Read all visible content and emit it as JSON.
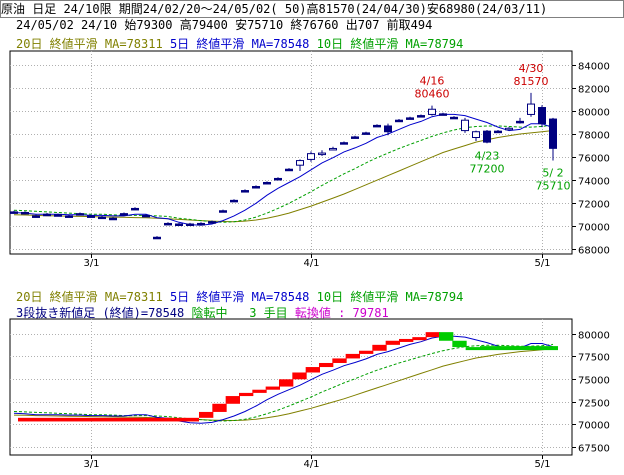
{
  "header": {
    "line1": "原油 日足 24/10限 期間24/02/20～24/05/02( 50)高81570(24/04/30)安68980(24/03/11)",
    "line2": "24/05/02 24/10 始79300 高79400 安75710 終76760 出707 前取494"
  },
  "legend_top": {
    "ma20": "20日 終値平滑 MA=78311",
    "ma5": "5日 終値平滑 MA=78548",
    "ma10": "10日 終値平滑 MA=78794"
  },
  "legend_bottom": {
    "ma20": "20日 終値平滑 MA=78311",
    "ma5": "5日 終値平滑 MA=78548",
    "ma10": "10日 終値平滑 MA=78794",
    "kagi_label": "3段抜き新値足 (終値)=78548",
    "state": "陰転中",
    "count": "3 手目",
    "reversal": "転換値 : 79781"
  },
  "colors": {
    "ma20": "#808000",
    "ma5": "#0000cc",
    "ma10": "#00a000",
    "up": "#ff0000",
    "down": "#00cc00",
    "candle_down": "#000080",
    "annotation_high": "#cc0000",
    "annotation_low": "#00a000"
  },
  "chart_data": [
    {
      "type": "candlestick",
      "x_ticks": [
        "3/1",
        "4/1",
        "5/1"
      ],
      "y_ticks": [
        68000,
        70000,
        72000,
        74000,
        76000,
        78000,
        80000,
        82000,
        84000
      ],
      "ylim": [
        67600,
        85200
      ],
      "annotations": [
        {
          "date": "4/16",
          "value": 80460,
          "date_label": "4/16",
          "value_label": "80460",
          "kind": "high"
        },
        {
          "date": "4/30",
          "value": 81570,
          "date_label": "4/30",
          "value_label": "81570",
          "kind": "high"
        },
        {
          "date": "4/23",
          "value": 77200,
          "date_label": "4/23",
          "value_label": "77200",
          "kind": "low"
        },
        {
          "date": "5/2",
          "value": 75710,
          "date_label": "5/ 2",
          "value_label": "75710",
          "kind": "low"
        }
      ],
      "candles": [
        {
          "date": "2/20",
          "o": 71250,
          "h": 71350,
          "l": 71100,
          "c": 71250
        },
        {
          "date": "2/21",
          "o": 71200,
          "h": 71300,
          "l": 71050,
          "c": 71150
        },
        {
          "date": "2/22",
          "o": 70900,
          "h": 71000,
          "l": 70750,
          "c": 70850
        },
        {
          "date": "2/26",
          "o": 71050,
          "h": 71150,
          "l": 70950,
          "c": 71050
        },
        {
          "date": "2/27",
          "o": 71000,
          "h": 71100,
          "l": 70900,
          "c": 71000
        },
        {
          "date": "2/28",
          "o": 70900,
          "h": 71000,
          "l": 70800,
          "c": 70900
        },
        {
          "date": "2/29",
          "o": 71100,
          "h": 71200,
          "l": 71000,
          "c": 71100
        },
        {
          "date": "3/1",
          "o": 70900,
          "h": 71000,
          "l": 70800,
          "c": 70900
        },
        {
          "date": "3/4",
          "o": 70800,
          "h": 70900,
          "l": 70700,
          "c": 70800
        },
        {
          "date": "3/5",
          "o": 70700,
          "h": 70800,
          "l": 70600,
          "c": 70700
        },
        {
          "date": "3/6",
          "o": 71100,
          "h": 71200,
          "l": 71000,
          "c": 71100
        },
        {
          "date": "3/7",
          "o": 71550,
          "h": 71650,
          "l": 71450,
          "c": 71550
        },
        {
          "date": "3/8",
          "o": 70950,
          "h": 71050,
          "l": 70850,
          "c": 70950
        },
        {
          "date": "3/11",
          "o": 69050,
          "h": 69150,
          "l": 68980,
          "c": 69050
        },
        {
          "date": "3/12",
          "o": 70250,
          "h": 70350,
          "l": 70150,
          "c": 70250
        },
        {
          "date": "3/13",
          "o": 70200,
          "h": 70300,
          "l": 70100,
          "c": 70200
        },
        {
          "date": "3/14",
          "o": 70200,
          "h": 70300,
          "l": 70100,
          "c": 70200
        },
        {
          "date": "3/15",
          "o": 70250,
          "h": 70350,
          "l": 70150,
          "c": 70250
        },
        {
          "date": "3/18",
          "o": 70400,
          "h": 70500,
          "l": 70300,
          "c": 70400
        },
        {
          "date": "3/19",
          "o": 71350,
          "h": 71450,
          "l": 71250,
          "c": 71350
        },
        {
          "date": "3/21",
          "o": 72250,
          "h": 72350,
          "l": 72150,
          "c": 72250
        },
        {
          "date": "3/22",
          "o": 73100,
          "h": 73200,
          "l": 73000,
          "c": 73100
        },
        {
          "date": "3/25",
          "o": 73450,
          "h": 73550,
          "l": 73350,
          "c": 73450
        },
        {
          "date": "3/26",
          "o": 73800,
          "h": 73900,
          "l": 73700,
          "c": 73800
        },
        {
          "date": "3/27",
          "o": 74150,
          "h": 74250,
          "l": 74050,
          "c": 74150
        },
        {
          "date": "3/28",
          "o": 74950,
          "h": 75050,
          "l": 74850,
          "c": 74950
        },
        {
          "date": "3/29",
          "o": 75300,
          "h": 75800,
          "l": 74800,
          "c": 75700
        },
        {
          "date": "4/1",
          "o": 75800,
          "h": 76500,
          "l": 75600,
          "c": 76300
        },
        {
          "date": "4/2",
          "o": 76300,
          "h": 76600,
          "l": 76100,
          "c": 76350
        },
        {
          "date": "4/3",
          "o": 76700,
          "h": 76900,
          "l": 76600,
          "c": 76750
        },
        {
          "date": "4/4",
          "o": 77250,
          "h": 77350,
          "l": 77150,
          "c": 77250
        },
        {
          "date": "4/5",
          "o": 77750,
          "h": 77850,
          "l": 77650,
          "c": 77750
        },
        {
          "date": "4/8",
          "o": 78100,
          "h": 78200,
          "l": 78000,
          "c": 78100
        },
        {
          "date": "4/9",
          "o": 78750,
          "h": 78850,
          "l": 78650,
          "c": 78750
        },
        {
          "date": "4/10",
          "o": 78700,
          "h": 78900,
          "l": 77900,
          "c": 78200
        },
        {
          "date": "4/11",
          "o": 79200,
          "h": 79300,
          "l": 79100,
          "c": 79200
        },
        {
          "date": "4/12",
          "o": 79400,
          "h": 79500,
          "l": 79300,
          "c": 79400
        },
        {
          "date": "4/15",
          "o": 79600,
          "h": 79700,
          "l": 79500,
          "c": 79600
        },
        {
          "date": "4/16",
          "o": 79700,
          "h": 80460,
          "l": 79600,
          "c": 80150
        },
        {
          "date": "4/17",
          "o": 79750,
          "h": 79850,
          "l": 79650,
          "c": 79750
        },
        {
          "date": "4/18",
          "o": 79450,
          "h": 79550,
          "l": 79350,
          "c": 79450
        },
        {
          "date": "4/19",
          "o": 78300,
          "h": 79400,
          "l": 78100,
          "c": 79200
        },
        {
          "date": "4/22",
          "o": 77700,
          "h": 78300,
          "l": 77400,
          "c": 78200
        },
        {
          "date": "4/23",
          "o": 78250,
          "h": 78350,
          "l": 77200,
          "c": 77300
        },
        {
          "date": "4/24",
          "o": 78250,
          "h": 78350,
          "l": 78150,
          "c": 78250
        },
        {
          "date": "4/25",
          "o": 78400,
          "h": 78600,
          "l": 78300,
          "c": 78500
        },
        {
          "date": "4/26",
          "o": 79100,
          "h": 79400,
          "l": 78900,
          "c": 79000
        },
        {
          "date": "4/30",
          "o": 79700,
          "h": 81570,
          "l": 79500,
          "c": 80600
        },
        {
          "date": "5/1",
          "o": 80300,
          "h": 80500,
          "l": 78600,
          "c": 78900
        },
        {
          "date": "5/2",
          "o": 79300,
          "h": 79400,
          "l": 75710,
          "c": 76760
        }
      ],
      "ma5": [
        71200,
        71150,
        71050,
        71050,
        71050,
        71000,
        71000,
        70950,
        70950,
        70900,
        70900,
        71050,
        71050,
        70750,
        70650,
        70350,
        70150,
        70100,
        70200,
        70500,
        70900,
        71400,
        72000,
        72700,
        73300,
        73800,
        74300,
        74900,
        75500,
        75950,
        76450,
        76800,
        77200,
        77700,
        78000,
        78400,
        78800,
        79100,
        79500,
        79700,
        79700,
        79600,
        79300,
        79000,
        78600,
        78300,
        78400,
        78900,
        78900,
        78548
      ],
      "ma10": [
        71400,
        71350,
        71300,
        71250,
        71200,
        71150,
        71100,
        71050,
        71050,
        71000,
        70950,
        70950,
        70950,
        70900,
        70850,
        70700,
        70600,
        70500,
        70400,
        70350,
        70400,
        70550,
        70800,
        71150,
        71550,
        72000,
        72500,
        73000,
        73550,
        74050,
        74550,
        75000,
        75500,
        75950,
        76350,
        76750,
        77100,
        77450,
        77800,
        78100,
        78350,
        78550,
        78650,
        78700,
        78700,
        78650,
        78600,
        78600,
        78650,
        78794
      ],
      "ma20": [
        71000,
        70980,
        70950,
        70920,
        70900,
        70880,
        70860,
        70840,
        70820,
        70800,
        70780,
        70760,
        70740,
        70700,
        70650,
        70600,
        70550,
        70500,
        70450,
        70420,
        70400,
        70450,
        70550,
        70700,
        70900,
        71150,
        71450,
        71750,
        72100,
        72450,
        72800,
        73200,
        73600,
        74000,
        74400,
        74800,
        75200,
        75600,
        76000,
        76400,
        76700,
        77000,
        77300,
        77500,
        77700,
        77850,
        78000,
        78100,
        78200,
        78311
      ]
    },
    {
      "type": "new-price-bars",
      "x_ticks": [
        "3/1",
        "4/1",
        "5/1"
      ],
      "y_ticks": [
        67500,
        70000,
        72500,
        75000,
        77500,
        80000
      ],
      "ylim": [
        66600,
        81600
      ],
      "up_bricks": [
        {
          "lo": 70300,
          "hi": 70700
        },
        {
          "lo": 70700,
          "hi": 71350
        },
        {
          "lo": 71350,
          "hi": 72250
        },
        {
          "lo": 72250,
          "hi": 73100
        },
        {
          "lo": 73100,
          "hi": 73450
        },
        {
          "lo": 73450,
          "hi": 73800
        },
        {
          "lo": 73800,
          "hi": 74150
        },
        {
          "lo": 74150,
          "hi": 74950
        },
        {
          "lo": 74950,
          "hi": 75700
        },
        {
          "lo": 75700,
          "hi": 76300
        },
        {
          "lo": 76300,
          "hi": 76750
        },
        {
          "lo": 76750,
          "hi": 77250
        },
        {
          "lo": 77250,
          "hi": 77750
        },
        {
          "lo": 77750,
          "hi": 78100
        },
        {
          "lo": 78100,
          "hi": 78750
        },
        {
          "lo": 78750,
          "hi": 79200
        },
        {
          "lo": 79200,
          "hi": 79400
        },
        {
          "lo": 79400,
          "hi": 79600
        },
        {
          "lo": 79600,
          "hi": 80150
        }
      ],
      "down_bricks": [
        {
          "lo": 79200,
          "hi": 80150
        },
        {
          "lo": 78500,
          "hi": 79200
        },
        {
          "lo": 78300,
          "hi": 78500
        }
      ]
    }
  ]
}
